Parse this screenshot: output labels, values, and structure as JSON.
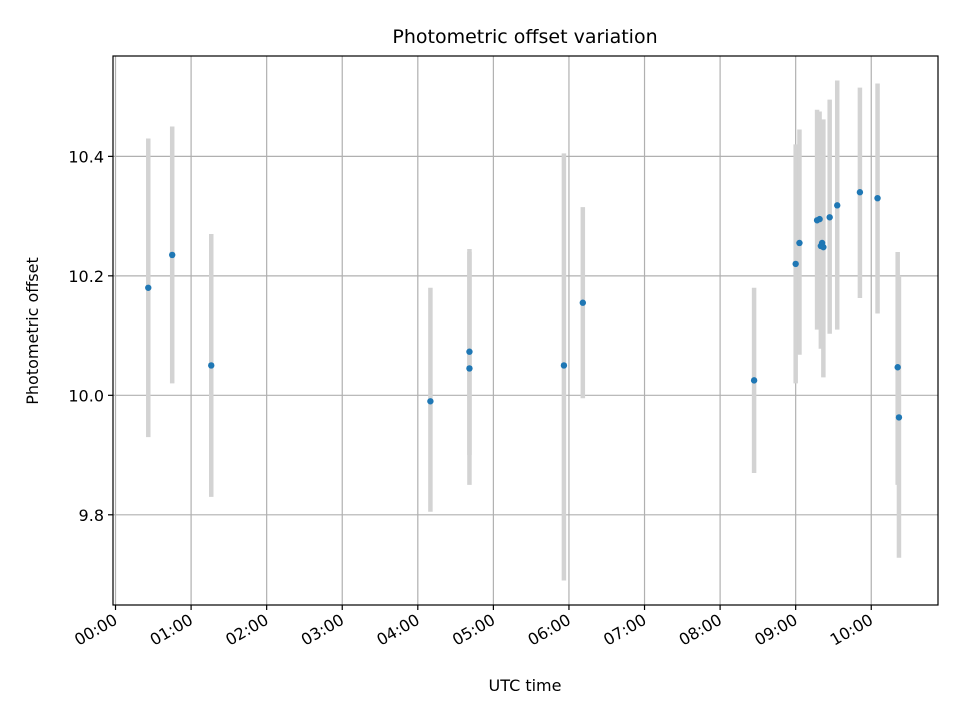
{
  "chart_data": {
    "type": "scatter",
    "title": "Photometric offset variation",
    "xlabel": "UTC time",
    "ylabel": "Photometric offset",
    "x_ticks": [
      "00:00",
      "01:00",
      "02:00",
      "03:00",
      "04:00",
      "05:00",
      "06:00",
      "07:00",
      "08:00",
      "09:00",
      "10:00"
    ],
    "y_ticks": [
      9.8,
      10.0,
      10.2,
      10.4
    ],
    "xlim": [
      "-00:02",
      "10:53"
    ],
    "ylim": [
      9.649,
      10.568
    ],
    "grid": true,
    "legend": "none",
    "point_color": "#1f77b4",
    "errorbar_color": "#d3d3d3",
    "points": [
      {
        "x": "00:26",
        "y": 10.18,
        "err_low": 9.93,
        "err_high": 10.43
      },
      {
        "x": "00:45",
        "y": 10.235,
        "err_low": 10.02,
        "err_high": 10.45
      },
      {
        "x": "01:16",
        "y": 10.05,
        "err_low": 9.83,
        "err_high": 10.27
      },
      {
        "x": "04:10",
        "y": 9.99,
        "err_low": 9.805,
        "err_high": 10.18
      },
      {
        "x": "04:41",
        "y": 10.045,
        "err_low": 9.85,
        "err_high": 10.24
      },
      {
        "x": "04:41",
        "y": 10.073,
        "err_low": 9.9,
        "err_high": 10.245
      },
      {
        "x": "05:56",
        "y": 10.05,
        "err_low": 9.69,
        "err_high": 10.405
      },
      {
        "x": "06:11",
        "y": 10.155,
        "err_low": 9.995,
        "err_high": 10.315
      },
      {
        "x": "08:27",
        "y": 10.025,
        "err_low": 9.87,
        "err_high": 10.18
      },
      {
        "x": "09:00",
        "y": 10.22,
        "err_low": 10.02,
        "err_high": 10.42
      },
      {
        "x": "09:03",
        "y": 10.255,
        "err_low": 10.068,
        "err_high": 10.445
      },
      {
        "x": "09:17",
        "y": 10.293,
        "err_low": 10.11,
        "err_high": 10.478
      },
      {
        "x": "09:19",
        "y": 10.295,
        "err_low": 10.115,
        "err_high": 10.475
      },
      {
        "x": "09:20",
        "y": 10.25,
        "err_low": 10.078,
        "err_high": 10.44
      },
      {
        "x": "09:21",
        "y": 10.255,
        "err_low": 10.08,
        "err_high": 10.43
      },
      {
        "x": "09:22",
        "y": 10.248,
        "err_low": 10.03,
        "err_high": 10.462
      },
      {
        "x": "09:27",
        "y": 10.298,
        "err_low": 10.103,
        "err_high": 10.495
      },
      {
        "x": "09:33",
        "y": 10.318,
        "err_low": 10.11,
        "err_high": 10.527
      },
      {
        "x": "09:51",
        "y": 10.34,
        "err_low": 10.163,
        "err_high": 10.515
      },
      {
        "x": "10:05",
        "y": 10.33,
        "err_low": 10.137,
        "err_high": 10.522
      },
      {
        "x": "10:21",
        "y": 10.047,
        "err_low": 9.85,
        "err_high": 10.24
      },
      {
        "x": "10:22",
        "y": 9.963,
        "err_low": 9.728,
        "err_high": 10.2
      }
    ]
  }
}
